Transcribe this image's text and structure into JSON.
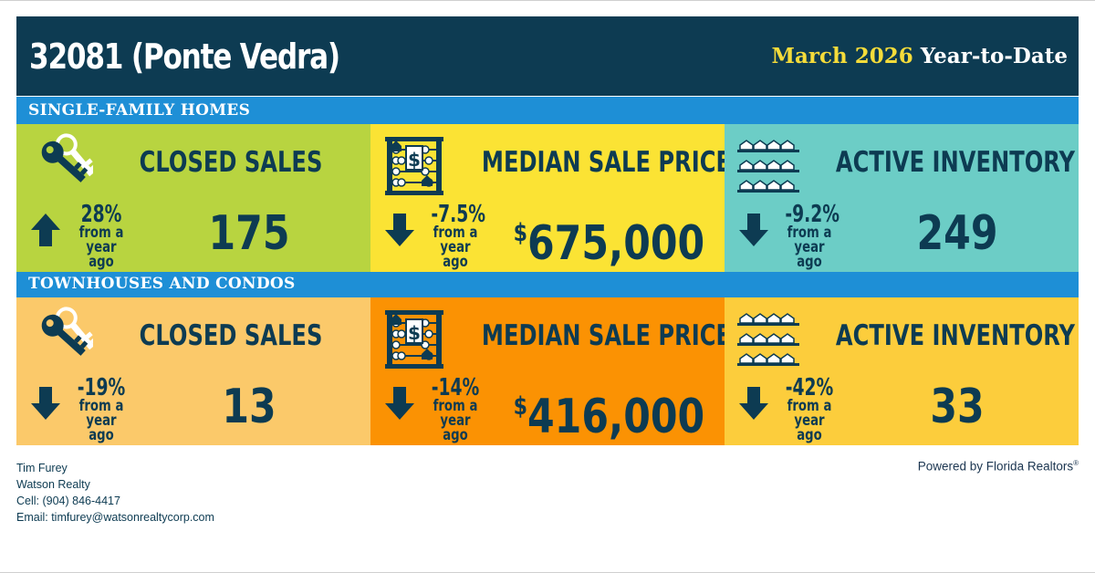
{
  "header": {
    "title": "32081 (Ponte Vedra)",
    "period_month": "March 2026",
    "period_label": "Year-to-Date"
  },
  "sections": [
    {
      "label": "SINGLE-FAMILY HOMES",
      "tiles": [
        {
          "title": "CLOSED SALES",
          "value": "175",
          "currency": "",
          "trend_pct": "28%",
          "trend_direction": "up",
          "trend_text": "from a year ago",
          "icon": "keys-icon",
          "bg": "#b8d440"
        },
        {
          "title": "MEDIAN SALE PRICE",
          "value": "675,000",
          "currency": "$",
          "trend_pct": "-7.5%",
          "trend_direction": "down",
          "trend_text": "from a year ago",
          "icon": "abacus-icon",
          "bg": "#fbe334"
        },
        {
          "title": "ACTIVE INVENTORY",
          "value": "249",
          "currency": "",
          "trend_pct": "-9.2%",
          "trend_direction": "down",
          "trend_text": "from a year ago",
          "icon": "houses-shelf-icon",
          "bg": "#6ccdc6"
        }
      ]
    },
    {
      "label": "TOWNHOUSES AND CONDOS",
      "tiles": [
        {
          "title": "CLOSED SALES",
          "value": "13",
          "currency": "",
          "trend_pct": "-19%",
          "trend_direction": "down",
          "trend_text": "from a year ago",
          "icon": "keys-icon",
          "bg": "#fbc96a"
        },
        {
          "title": "MEDIAN SALE PRICE",
          "value": "416,000",
          "currency": "$",
          "trend_pct": "-14%",
          "trend_direction": "down",
          "trend_text": "from a year ago",
          "icon": "abacus-icon",
          "bg": "#fb9203"
        },
        {
          "title": "ACTIVE INVENTORY",
          "value": "33",
          "currency": "",
          "trend_pct": "-42%",
          "trend_direction": "down",
          "trend_text": "from a year ago",
          "icon": "houses-shelf-icon",
          "bg": "#fccd3c"
        }
      ]
    }
  ],
  "footer": {
    "contact": [
      "Tim Furey",
      "Watson Realty",
      "Cell: (904) 846-4417",
      "Email: timfurey@watsonrealtycorp.com"
    ],
    "credit": "Powered by Florida Realtors",
    "credit_mark": "®"
  },
  "colors": {
    "navy": "#0d3b52",
    "band_blue": "#1e8fd6",
    "accent_yellow": "#f5dc3a"
  }
}
